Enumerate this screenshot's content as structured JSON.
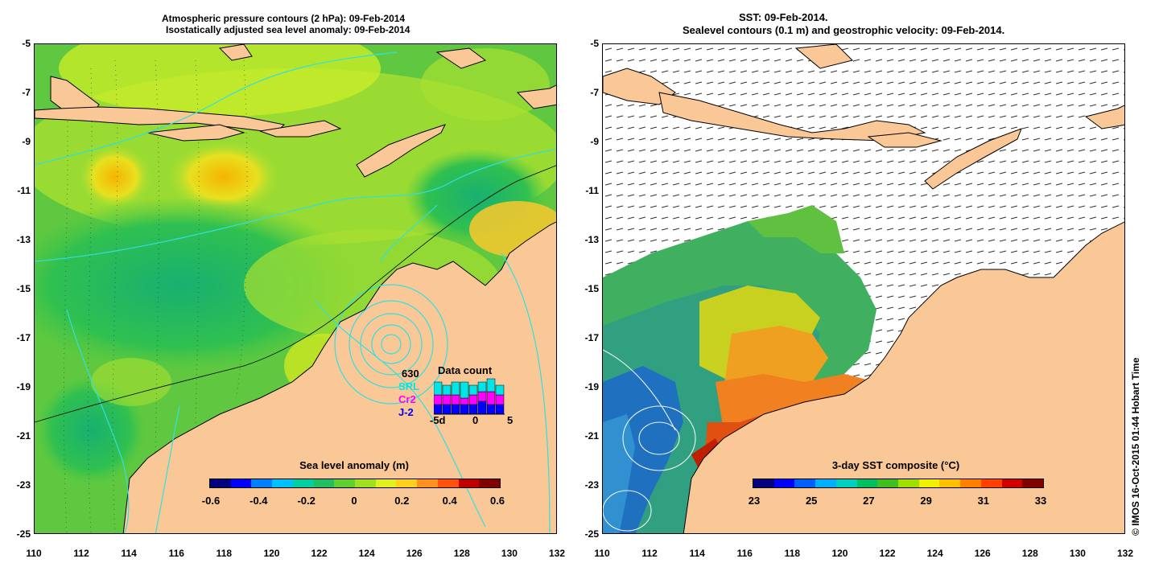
{
  "left_panel": {
    "title_line1": "Atmospheric pressure contours (2 hPa): 09-Feb-2014",
    "title_line2": "Isostatically adjusted sea level anomaly: 09-Feb-2014",
    "colorbar": {
      "label": "Sea level anomaly (m)",
      "ticks": [
        "-0.6",
        "-0.4",
        "-0.2",
        "0",
        "0.2",
        "0.4",
        "0.6"
      ],
      "range": [
        -0.6,
        0.6
      ],
      "colors": [
        "#000080",
        "#0000ff",
        "#0080ff",
        "#00c0ff",
        "#00d0a0",
        "#20c060",
        "#60d030",
        "#a0e020",
        "#e0f020",
        "#ffd020",
        "#ff9020",
        "#ff5010",
        "#c00000",
        "#800000"
      ]
    },
    "data_count": {
      "title": "Data count",
      "total": "630",
      "missions": [
        {
          "name": "SRL",
          "color": "#00e5e5"
        },
        {
          "name": "Cr2",
          "color": "#ff00ff"
        },
        {
          "name": "J-2",
          "color": "#0000ff"
        }
      ],
      "axis_labels": [
        "-5d",
        "0",
        "5"
      ],
      "bars": [
        {
          "j2": 3,
          "cr2": 3,
          "srl": 4
        },
        {
          "j2": 3,
          "cr2": 3,
          "srl": 3
        },
        {
          "j2": 3,
          "cr2": 3,
          "srl": 4
        },
        {
          "j2": 3,
          "cr2": 2,
          "srl": 5
        },
        {
          "j2": 3,
          "cr2": 3,
          "srl": 3
        },
        {
          "j2": 4,
          "cr2": 3,
          "srl": 3
        },
        {
          "j2": 3,
          "cr2": 4,
          "srl": 4
        },
        {
          "j2": 3,
          "cr2": 3,
          "srl": 3
        }
      ]
    }
  },
  "right_panel": {
    "title_line1": "SST: 09-Feb-2014.",
    "title_line2": "Sealevel contours (0.1 m) and geostrophic velocity: 09-Feb-2014.",
    "colorbar": {
      "label": "3-day SST composite (°C)",
      "ticks": [
        "23",
        "25",
        "27",
        "29",
        "31",
        "33"
      ],
      "range": [
        23,
        33
      ],
      "colors": [
        "#000080",
        "#0000ff",
        "#0060ff",
        "#00b0ff",
        "#00d0c0",
        "#00c060",
        "#40c020",
        "#a0e000",
        "#f0f000",
        "#ffc000",
        "#ff8000",
        "#ff4000",
        "#d00000",
        "#800000"
      ]
    }
  },
  "axes": {
    "x_ticks": [
      "110",
      "112",
      "114",
      "116",
      "118",
      "120",
      "122",
      "124",
      "126",
      "128",
      "130",
      "132"
    ],
    "y_ticks": [
      "-5",
      "-7",
      "-9",
      "-11",
      "-13",
      "-15",
      "-17",
      "-19",
      "-21",
      "-23",
      "-25"
    ]
  },
  "copyright": "© IMOS 16-Oct-2015 01:44 Hobart Time",
  "colors": {
    "land": "#fac896",
    "coastline": "#000000",
    "slc_contour": "#30e0e0"
  }
}
